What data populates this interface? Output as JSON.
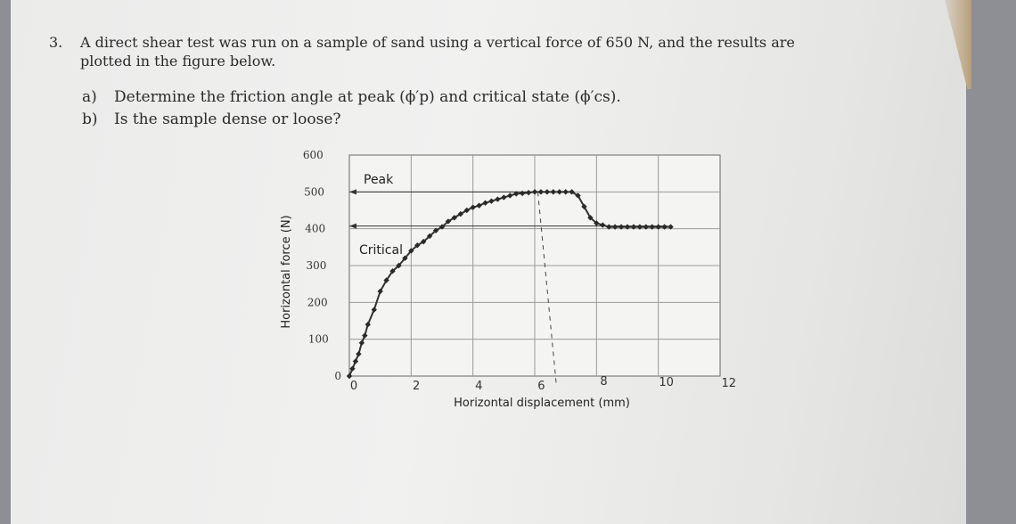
{
  "question": {
    "number": "3.",
    "line1": "A direct shear test was run on a sample of sand using a vertical force of 650 N, and the results are",
    "line2": "plotted in the figure below.",
    "parts": [
      {
        "label": "a)",
        "text": "Determine the friction angle at peak (ϕ′p) and critical state (ϕ′cs)."
      },
      {
        "label": "b)",
        "text": "Is the sample dense or loose?"
      }
    ]
  },
  "chart_data": {
    "type": "line",
    "xlabel": "Horizontal displacement (mm)",
    "ylabel": "Horizontal force (N)",
    "xlim": [
      0,
      12
    ],
    "ylim": [
      0,
      600
    ],
    "xticks": [
      "0",
      "2",
      "4",
      "6",
      "8",
      "10",
      "12"
    ],
    "yticks": [
      "0",
      "100",
      "200",
      "300",
      "400",
      "500",
      "600"
    ],
    "grid": true,
    "annotations": [
      {
        "text": "Peak",
        "y": 500
      },
      {
        "text": "Critical",
        "y": 400
      }
    ],
    "series": [
      {
        "x": [
          0,
          0.1,
          0.2,
          0.3,
          0.4,
          0.5,
          0.6,
          0.8,
          1.0,
          1.2,
          1.4,
          1.6,
          1.8,
          2.0,
          2.2,
          2.4,
          2.6,
          2.8,
          3.0,
          3.2,
          3.4,
          3.6,
          3.8,
          4.0,
          4.2,
          4.4,
          4.6,
          4.8,
          5.0,
          5.2,
          5.4,
          5.6,
          5.8,
          6.0,
          6.2,
          6.4,
          6.6,
          6.8,
          7.0,
          7.2,
          7.4,
          7.6,
          7.8,
          8.0,
          8.2,
          8.4,
          8.6,
          8.8,
          9.0,
          9.2,
          9.4,
          9.6,
          9.8,
          10.0,
          10.2,
          10.4
        ],
        "y": [
          0,
          20,
          40,
          60,
          90,
          110,
          140,
          180,
          230,
          260,
          285,
          300,
          320,
          340,
          355,
          365,
          380,
          395,
          405,
          420,
          430,
          440,
          450,
          458,
          463,
          470,
          475,
          480,
          485,
          490,
          495,
          496,
          498,
          500,
          500,
          500,
          500,
          500,
          500,
          500,
          490,
          460,
          430,
          415,
          410,
          405,
          405,
          405,
          405,
          405,
          405,
          405,
          405,
          405,
          405,
          405
        ]
      }
    ]
  }
}
